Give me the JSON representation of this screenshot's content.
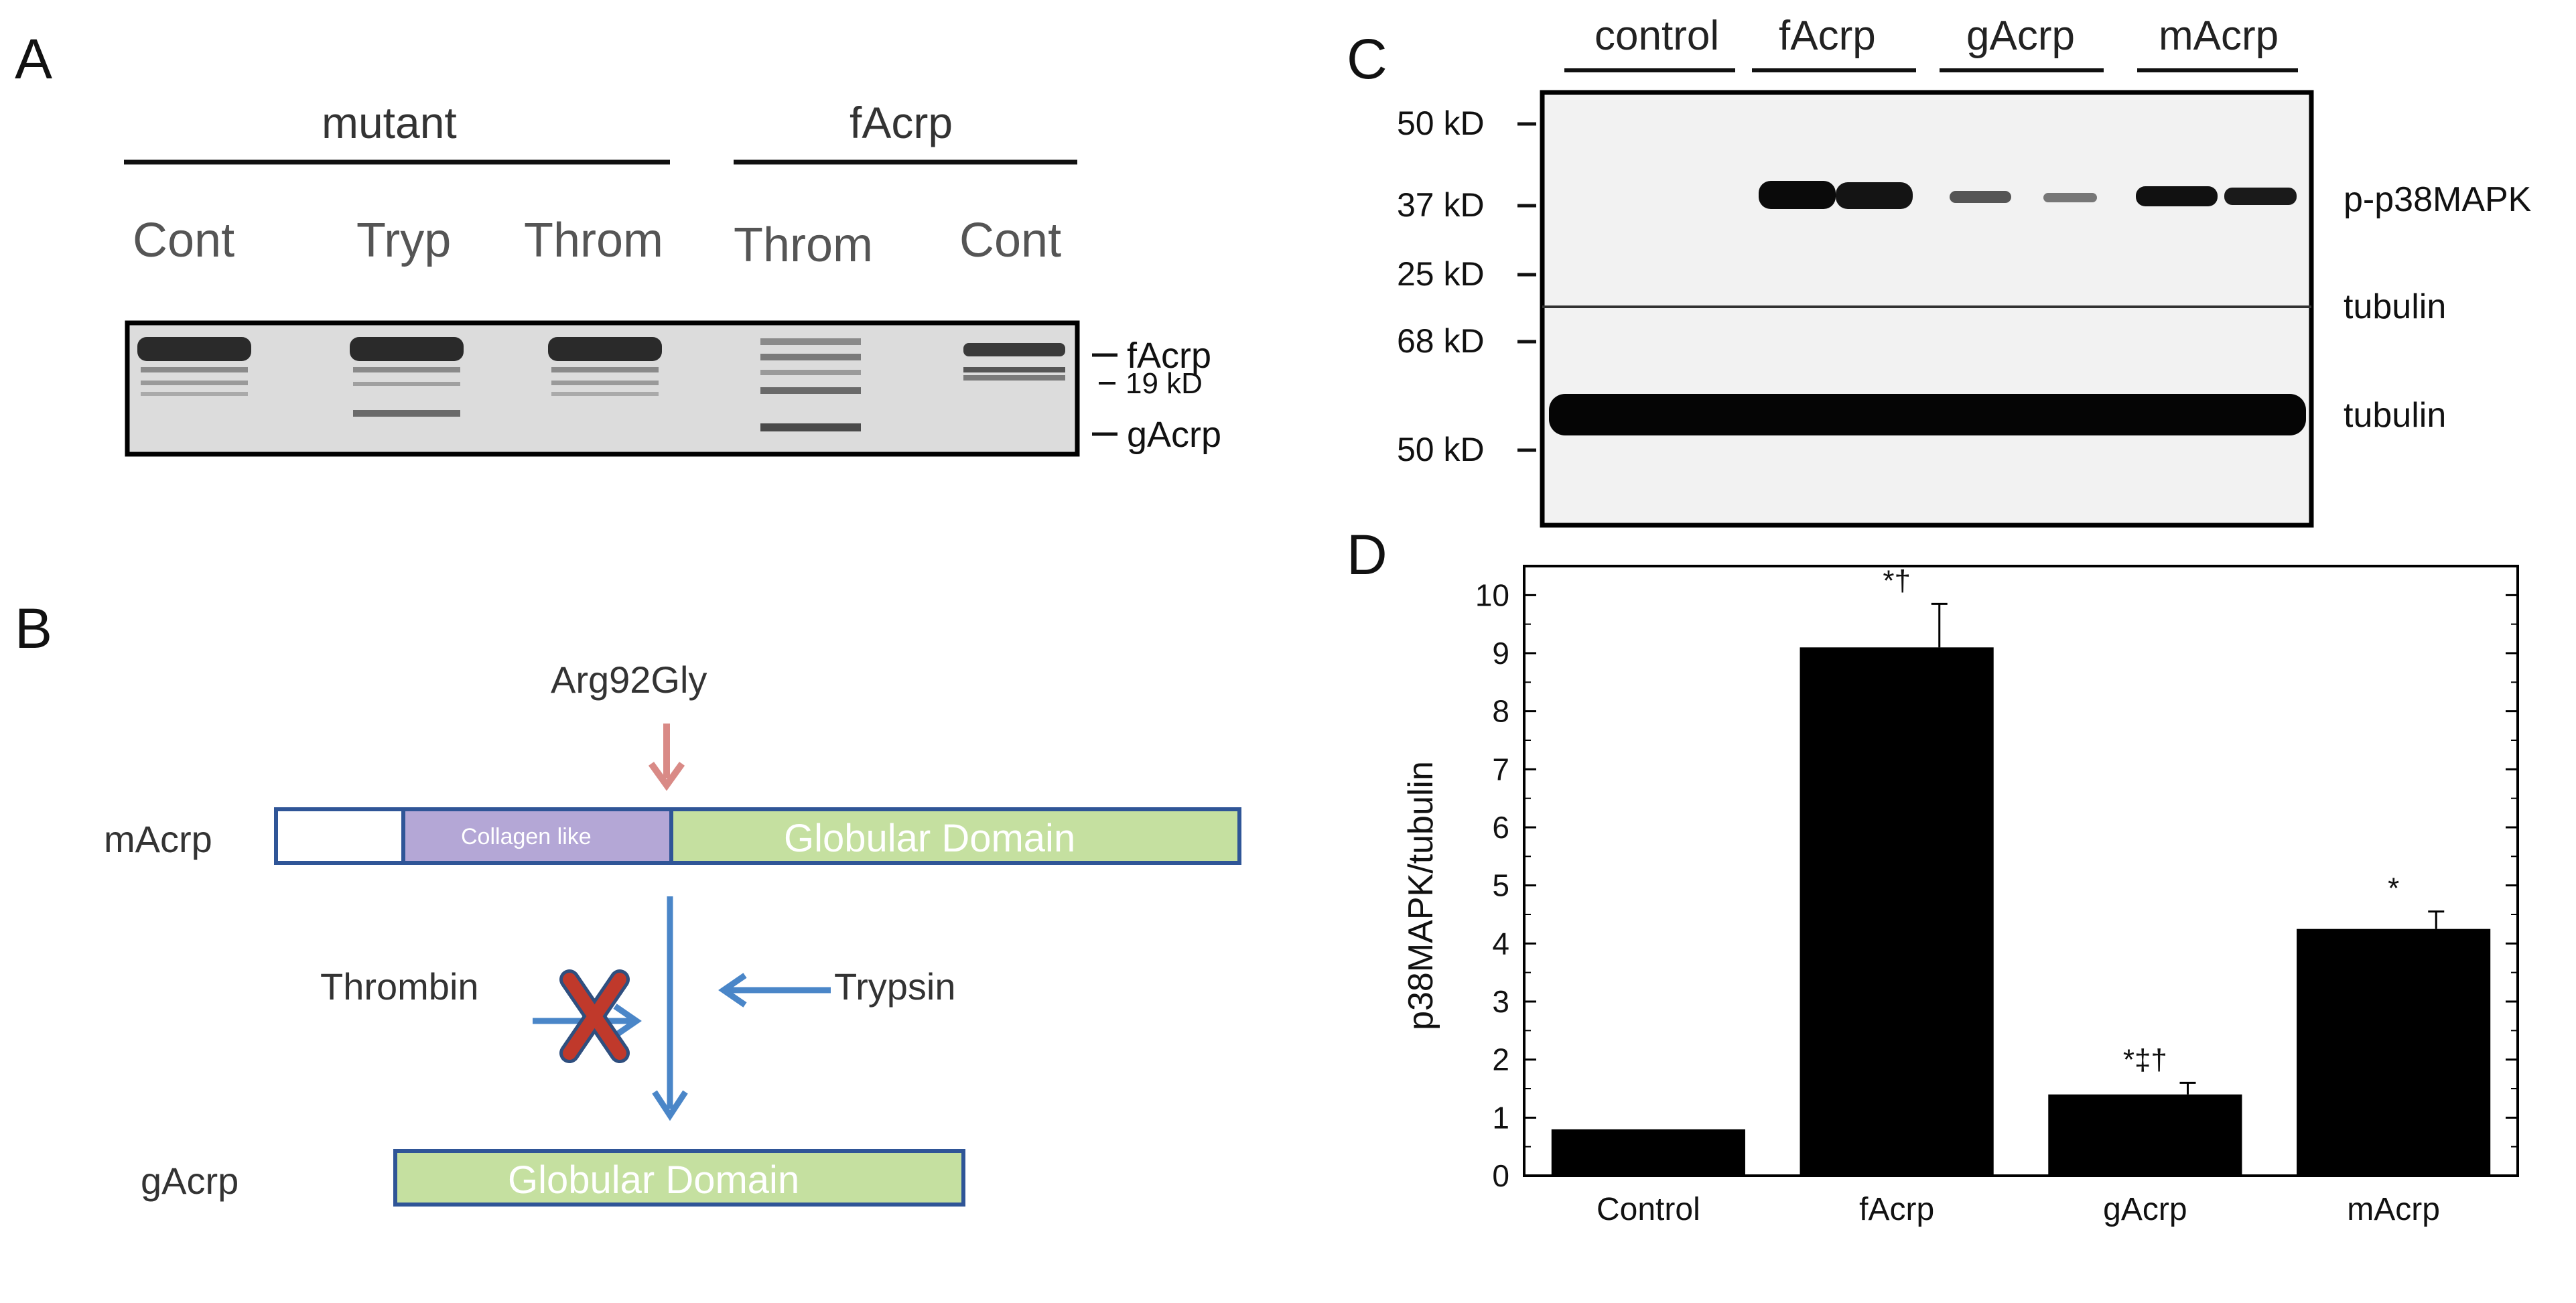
{
  "panel_a": {
    "letter": "A",
    "group_labels": [
      "mutant",
      "fAcrp"
    ],
    "lane_labels": [
      "Cont",
      "Tryp",
      "Throm",
      "Throm",
      "Cont"
    ],
    "band_labels": [
      "fAcrp",
      "19 kD",
      "gAcrp"
    ]
  },
  "panel_b": {
    "letter": "B",
    "mutation": "Arg92Gly",
    "row1_label": "mAcrp",
    "segment_collagen": "Collagen like",
    "segment_globular": "Globular Domain",
    "protease_left": "Thrombin",
    "protease_right": "Trypsin",
    "row2_label": "gAcrp",
    "row2_globular": "Globular Domain"
  },
  "panel_c": {
    "letter": "C",
    "group_labels": [
      "control",
      "fAcrp",
      "gAcrp",
      "mAcrp"
    ],
    "mw_markers_top": [
      "50 kD",
      "37 kD",
      "25 kD"
    ],
    "mw_markers_bottom": [
      "68 kD",
      "50 kD"
    ],
    "right_labels": [
      "p-p38MAPK",
      "tubulin",
      "tubulin"
    ]
  },
  "panel_d": {
    "letter": "D"
  },
  "chart_data": {
    "type": "bar",
    "title": "",
    "xlabel": "",
    "ylabel": "p38MAPK/tubulin",
    "categories": [
      "Control",
      "fAcrp",
      "gAcrp",
      "mAcrp"
    ],
    "values": [
      0.8,
      9.1,
      1.4,
      4.25
    ],
    "errors": [
      0,
      0.75,
      0.2,
      0.3
    ],
    "annotations": [
      "",
      "*†",
      "*‡†",
      "*"
    ],
    "ylim": [
      0,
      10.5
    ],
    "yticks": [
      0,
      1,
      2,
      3,
      4,
      5,
      6,
      7,
      8,
      9,
      10
    ],
    "bar_color": "#000000"
  }
}
